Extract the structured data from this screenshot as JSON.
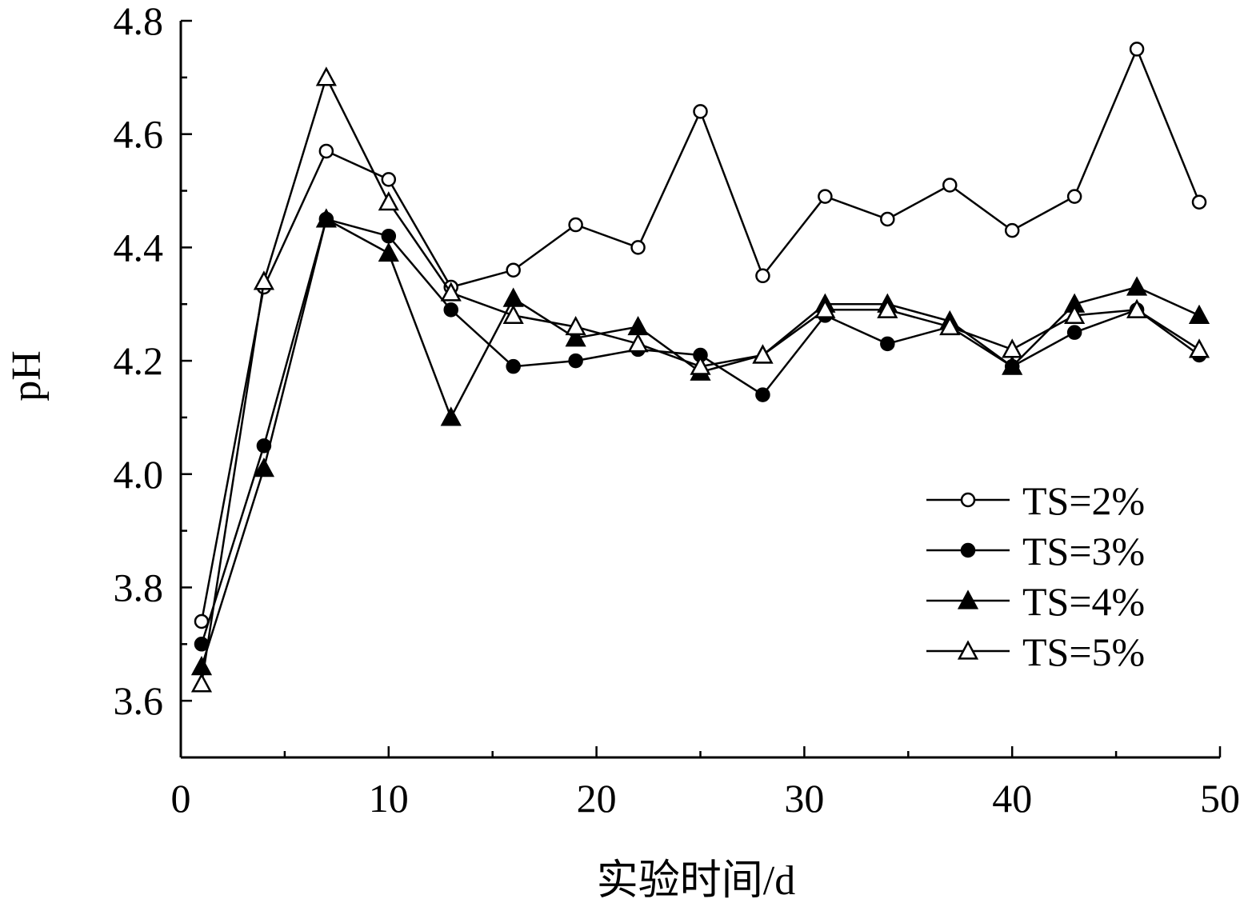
{
  "chart_data": {
    "type": "line",
    "xlabel": "实验时间/d",
    "ylabel": "pH",
    "xlim": [
      0,
      50
    ],
    "ylim": [
      3.5,
      4.8
    ],
    "xticks": [
      0,
      10,
      20,
      30,
      40,
      50
    ],
    "xticks_minor": [
      5,
      15,
      25,
      35,
      45
    ],
    "yticks": [
      3.6,
      3.8,
      4.0,
      4.2,
      4.4,
      4.6,
      4.8
    ],
    "yticks_minor": [
      3.7,
      3.9,
      4.1,
      4.3,
      4.5,
      4.7
    ],
    "grid": false,
    "legend_position": "lower-right",
    "x": [
      1,
      4,
      7,
      10,
      13,
      16,
      19,
      22,
      25,
      28,
      31,
      34,
      37,
      40,
      43,
      46,
      49
    ],
    "series": [
      {
        "name": "TS=2%",
        "marker": "open-circle",
        "values": [
          3.74,
          4.33,
          4.57,
          4.52,
          4.33,
          4.36,
          4.44,
          4.4,
          4.64,
          4.35,
          4.49,
          4.45,
          4.51,
          4.43,
          4.49,
          4.75,
          4.48
        ]
      },
      {
        "name": "TS=3%",
        "marker": "filled-circle",
        "values": [
          3.7,
          4.05,
          4.45,
          4.42,
          4.29,
          4.19,
          4.2,
          4.22,
          4.21,
          4.14,
          4.28,
          4.23,
          4.26,
          4.19,
          4.25,
          4.29,
          4.21
        ]
      },
      {
        "name": "TS=4%",
        "marker": "filled-triangle",
        "values": [
          3.66,
          4.01,
          4.45,
          4.39,
          4.1,
          4.31,
          4.24,
          4.26,
          4.18,
          4.21,
          4.3,
          4.3,
          4.27,
          4.19,
          4.3,
          4.33,
          4.28
        ]
      },
      {
        "name": "TS=5%",
        "marker": "open-triangle",
        "values": [
          3.63,
          4.34,
          4.7,
          4.48,
          4.32,
          4.28,
          4.26,
          4.23,
          4.19,
          4.21,
          4.29,
          4.29,
          4.26,
          4.22,
          4.28,
          4.29,
          4.22
        ]
      }
    ]
  }
}
